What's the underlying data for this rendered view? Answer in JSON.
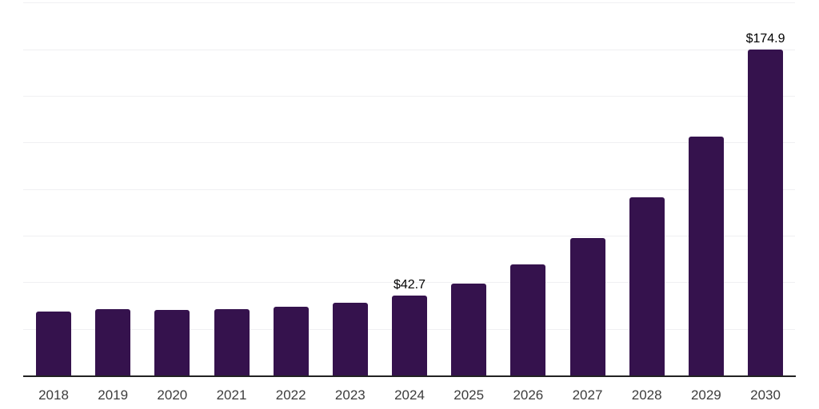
{
  "chart_data": {
    "type": "bar",
    "title": "",
    "xlabel": "",
    "ylabel": "",
    "categories": [
      "2018",
      "2019",
      "2020",
      "2021",
      "2022",
      "2023",
      "2024",
      "2025",
      "2026",
      "2027",
      "2028",
      "2029",
      "2030"
    ],
    "values": [
      34.1,
      35.6,
      35.2,
      35.6,
      36.7,
      39.2,
      42.7,
      49.2,
      59.5,
      73.5,
      95.7,
      128.0,
      174.9
    ],
    "value_labels": [
      {
        "category": "2024",
        "text": "$42.7"
      },
      {
        "category": "2030",
        "text": "$174.9"
      }
    ],
    "unit_prefix": "$",
    "ylim": [
      0,
      200
    ],
    "grid_interval": 25,
    "grid": "horizontal-only",
    "y_axis_tick_labels": "none",
    "legend": "none",
    "colors": {
      "bar": "#35124d",
      "gridline": "#f0f0f2",
      "axis_line": "#222222",
      "tick_label": "#3d3d3d",
      "value_label": "#000000",
      "background": "#ffffff"
    }
  }
}
